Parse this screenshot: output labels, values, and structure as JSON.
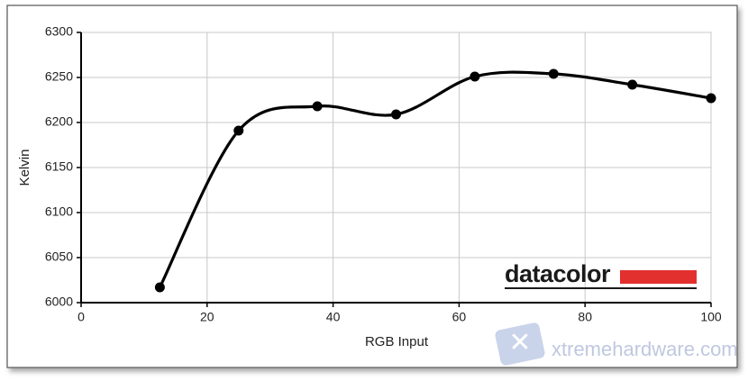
{
  "chart_data": {
    "type": "line",
    "x_label": "RGB Input",
    "y_label": "Kelvin",
    "x": [
      12.5,
      25,
      37.5,
      50,
      62.5,
      75,
      87.5,
      100
    ],
    "series": [
      {
        "name": "Kelvin",
        "color": "#000000",
        "values": [
          6017,
          6191,
          6218,
          6209,
          6251,
          6254,
          6242,
          6227
        ]
      }
    ],
    "xlim": [
      0,
      100
    ],
    "xticks": [
      0,
      20,
      40,
      60,
      80,
      100
    ],
    "ylim": [
      6000,
      6300
    ],
    "yticks": [
      6000,
      6050,
      6100,
      6150,
      6200,
      6250,
      6300
    ],
    "grid": true,
    "smooth": true,
    "logo": "datacolor",
    "watermark": "xtremehardware.com"
  }
}
